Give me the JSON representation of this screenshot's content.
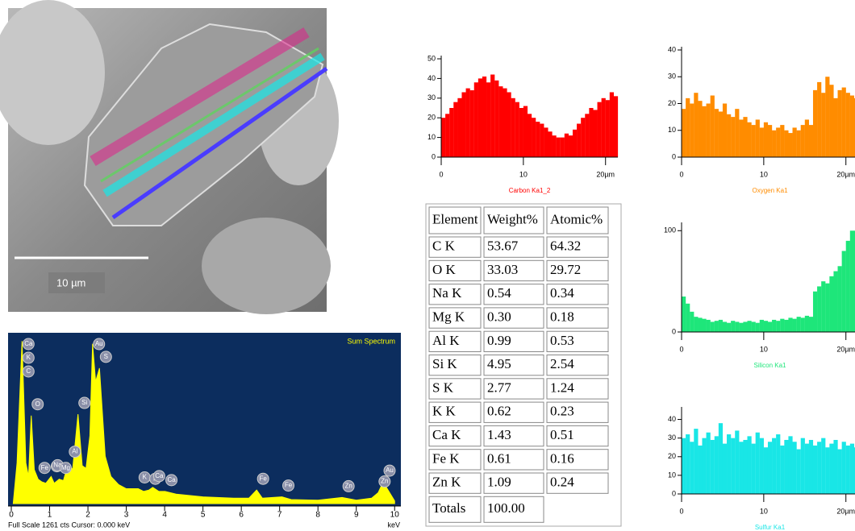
{
  "image": {
    "scale_label": "10 µm"
  },
  "chart_data": [
    {
      "type": "area",
      "title": "Sum Spectrum",
      "footer": "Full Scale 1261 cts  Cursor: 0.000 keV",
      "x_label": "keV",
      "color": "#ffff00",
      "x": [
        0.05,
        0.15,
        0.28,
        0.38,
        0.45,
        0.52,
        0.6,
        0.7,
        0.8,
        0.9,
        1.04,
        1.12,
        1.25,
        1.36,
        1.49,
        1.6,
        1.74,
        1.85,
        1.95,
        2.05,
        2.12,
        2.2,
        2.3,
        2.45,
        2.6,
        2.8,
        3.0,
        3.31,
        3.45,
        3.59,
        3.69,
        3.85,
        4.01,
        4.3,
        5.0,
        5.8,
        6.2,
        6.4,
        6.55,
        7.06,
        7.3,
        8.0,
        8.63,
        9.0,
        9.4,
        9.57,
        9.7,
        9.85,
        10.0
      ],
      "values": [
        0,
        300,
        1200,
        300,
        200,
        650,
        250,
        180,
        160,
        150,
        200,
        150,
        180,
        170,
        300,
        250,
        660,
        280,
        260,
        500,
        1180,
        900,
        1000,
        350,
        200,
        140,
        110,
        110,
        90,
        100,
        120,
        90,
        90,
        70,
        50,
        40,
        40,
        100,
        40,
        50,
        30,
        25,
        45,
        25,
        40,
        80,
        160,
        90,
        20
      ],
      "xlim": [
        0,
        10.1
      ],
      "ylim": [
        0,
        1261
      ],
      "xticks": [
        0,
        1,
        2,
        3,
        4,
        5,
        6,
        7,
        8,
        9,
        10
      ],
      "annotations": [
        {
          "label": "Ca",
          "x": 0.28
        },
        {
          "label": "K",
          "x": 0.28
        },
        {
          "label": "C",
          "x": 0.28
        },
        {
          "label": "O",
          "x": 0.52
        },
        {
          "label": "Fe",
          "x": 0.7
        },
        {
          "label": "Zn",
          "x": 1.02
        },
        {
          "label": "Na",
          "x": 1.04
        },
        {
          "label": "Mg",
          "x": 1.25
        },
        {
          "label": "Al",
          "x": 1.49
        },
        {
          "label": "Si",
          "x": 1.74
        },
        {
          "label": "Au",
          "x": 2.12
        },
        {
          "label": "S",
          "x": 2.3
        },
        {
          "label": "K",
          "x": 3.31
        },
        {
          "label": "K",
          "x": 3.59
        },
        {
          "label": "Ca",
          "x": 3.69
        },
        {
          "label": "Ca",
          "x": 4.01
        },
        {
          "label": "Fe",
          "x": 6.4
        },
        {
          "label": "Fe",
          "x": 7.06
        },
        {
          "label": "Zn",
          "x": 8.63
        },
        {
          "label": "Zn",
          "x": 9.57
        },
        {
          "label": "Au",
          "x": 9.7
        }
      ]
    },
    {
      "type": "bar",
      "title": "Carbon Ka1_2",
      "color": "#ff0000",
      "x": [
        0,
        0.5,
        1,
        1.5,
        2,
        2.5,
        3,
        3.5,
        4,
        4.5,
        5,
        5.5,
        6,
        6.5,
        7,
        7.5,
        8,
        8.5,
        9,
        9.5,
        10,
        10.5,
        11,
        11.5,
        12,
        12.5,
        13,
        13.5,
        14,
        14.5,
        15,
        15.5,
        16,
        16.5,
        17,
        17.5,
        18,
        18.5,
        19,
        19.5,
        20,
        20.5,
        21
      ],
      "values": [
        20,
        22,
        25,
        28,
        30,
        33,
        35,
        34,
        38,
        40,
        41,
        38,
        42,
        39,
        36,
        35,
        33,
        30,
        28,
        25,
        26,
        22,
        20,
        18,
        17,
        15,
        13,
        11,
        10,
        10,
        12,
        11,
        14,
        17,
        20,
        22,
        25,
        24,
        28,
        30,
        29,
        33,
        31
      ],
      "xlim": [
        0,
        21.5
      ],
      "ylim": [
        0,
        50
      ],
      "xticks": [
        0,
        10,
        {
          "value": 20,
          "label": "20µm"
        }
      ],
      "yticks": [
        0,
        10,
        20,
        30,
        40,
        50
      ]
    },
    {
      "type": "bar",
      "title": "Oxygen Ka1",
      "color": "#ff8c00",
      "x": [
        0,
        0.5,
        1,
        1.5,
        2,
        2.5,
        3,
        3.5,
        4,
        4.5,
        5,
        5.5,
        6,
        6.5,
        7,
        7.5,
        8,
        8.5,
        9,
        9.5,
        10,
        10.5,
        11,
        11.5,
        12,
        12.5,
        13,
        13.5,
        14,
        14.5,
        15,
        15.5,
        16,
        16.5,
        17,
        17.5,
        18,
        18.5,
        19,
        19.5,
        20,
        20.5,
        21
      ],
      "values": [
        18,
        22,
        20,
        24,
        21,
        19,
        20,
        23,
        18,
        17,
        20,
        16,
        15,
        18,
        14,
        15,
        13,
        12,
        14,
        11,
        13,
        12,
        10,
        11,
        12,
        10,
        9,
        11,
        10,
        12,
        14,
        12,
        25,
        28,
        24,
        30,
        27,
        22,
        25,
        26,
        24,
        23,
        22
      ],
      "xlim": [
        0,
        21.5
      ],
      "ylim": [
        0,
        40
      ],
      "xticks": [
        0,
        10,
        {
          "value": 20,
          "label": "20µm"
        }
      ],
      "yticks": [
        0,
        10,
        20,
        30,
        40
      ]
    },
    {
      "type": "bar",
      "title": "Silicon Ka1",
      "color": "#1ee67a",
      "x": [
        0,
        0.5,
        1,
        1.5,
        2,
        2.5,
        3,
        3.5,
        4,
        4.5,
        5,
        5.5,
        6,
        6.5,
        7,
        7.5,
        8,
        8.5,
        9,
        9.5,
        10,
        10.5,
        11,
        11.5,
        12,
        12.5,
        13,
        13.5,
        14,
        14.5,
        15,
        15.5,
        16,
        16.5,
        17,
        17.5,
        18,
        18.5,
        19,
        19.5,
        20,
        20.5,
        21
      ],
      "values": [
        35,
        28,
        20,
        15,
        14,
        13,
        12,
        10,
        11,
        12,
        10,
        9,
        11,
        10,
        9,
        10,
        11,
        10,
        9,
        12,
        11,
        10,
        12,
        11,
        13,
        12,
        14,
        13,
        15,
        14,
        16,
        15,
        40,
        45,
        50,
        48,
        55,
        60,
        65,
        80,
        90,
        100,
        100
      ],
      "xlim": [
        0,
        21.5
      ],
      "ylim": [
        0,
        105
      ],
      "xticks": [
        0,
        10,
        {
          "value": 20,
          "label": "20µm"
        }
      ],
      "yticks": [
        0,
        100
      ]
    },
    {
      "type": "bar",
      "title": "Sulfur Ka1",
      "color": "#19e6e6",
      "x": [
        0,
        0.5,
        1,
        1.5,
        2,
        2.5,
        3,
        3.5,
        4,
        4.5,
        5,
        5.5,
        6,
        6.5,
        7,
        7.5,
        8,
        8.5,
        9,
        9.5,
        10,
        10.5,
        11,
        11.5,
        12,
        12.5,
        13,
        13.5,
        14,
        14.5,
        15,
        15.5,
        16,
        16.5,
        17,
        17.5,
        18,
        18.5,
        19,
        19.5,
        20,
        20.5,
        21
      ],
      "values": [
        30,
        32,
        28,
        35,
        26,
        30,
        33,
        29,
        31,
        38,
        27,
        32,
        30,
        34,
        28,
        29,
        31,
        27,
        33,
        30,
        25,
        28,
        30,
        32,
        26,
        29,
        31,
        28,
        24,
        30,
        27,
        29,
        26,
        28,
        30,
        25,
        27,
        29,
        24,
        28,
        26,
        27,
        25
      ],
      "xlim": [
        0,
        21.5
      ],
      "ylim": [
        0,
        45
      ],
      "xticks": [
        0,
        10,
        {
          "value": 20,
          "label": "20µm"
        }
      ],
      "yticks": [
        0,
        10,
        20,
        30,
        40
      ]
    }
  ],
  "table": {
    "header": [
      "Element",
      "Weight%",
      "Atomic%"
    ],
    "rows": [
      [
        "C K",
        "53.67",
        "64.32"
      ],
      [
        "O K",
        "33.03",
        "29.72"
      ],
      [
        "Na K",
        "0.54",
        "0.34"
      ],
      [
        "Mg K",
        "0.30",
        "0.18"
      ],
      [
        "Al K",
        "0.99",
        "0.53"
      ],
      [
        "Si K",
        "4.95",
        "2.54"
      ],
      [
        "S K",
        "2.77",
        "1.24"
      ],
      [
        "K K",
        "0.62",
        "0.23"
      ],
      [
        "Ca K",
        "1.43",
        "0.51"
      ],
      [
        "Fe K",
        "0.61",
        "0.16"
      ],
      [
        "Zn K",
        "1.09",
        "0.24"
      ]
    ],
    "totals": [
      "Totals",
      "100.00"
    ]
  }
}
